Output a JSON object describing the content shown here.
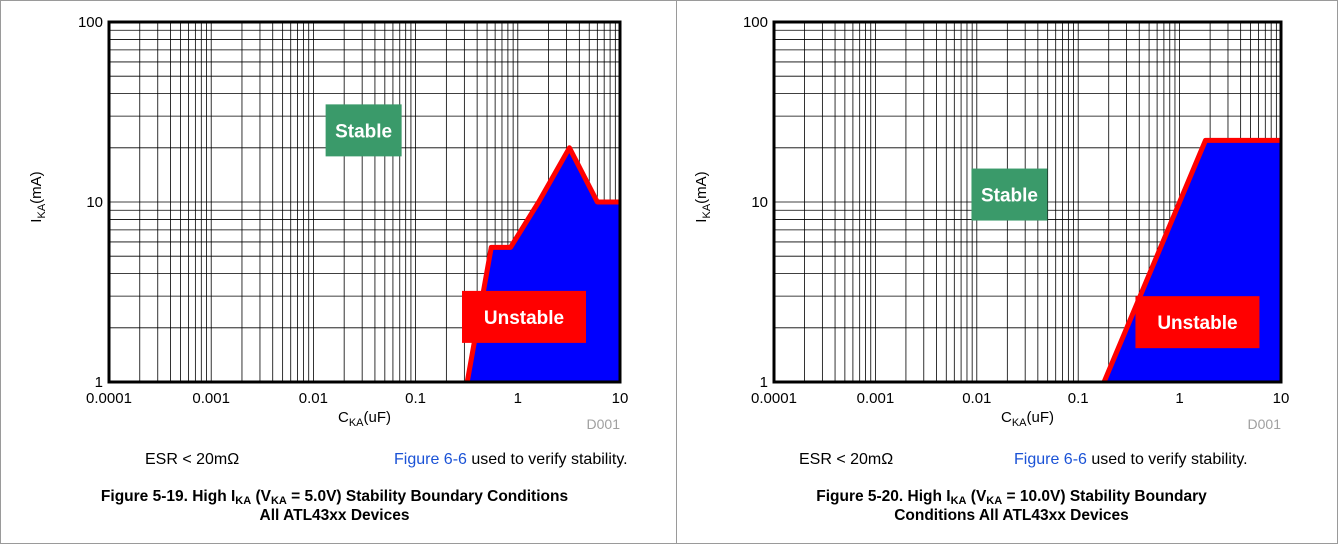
{
  "colors": {
    "fill": "#0000ff",
    "boundary": "#ff0000",
    "stable_box": "#3a9a6a",
    "link": "#1a52d6",
    "code": "#a0a0a0"
  },
  "charts": [
    {
      "note_left": "ESR < 20mΩ",
      "note_link": "Figure 6-6",
      "note_right": " used to verify stability.",
      "caption": {
        "fig": "Figure 5-19. High I",
        "sub1": "KA",
        "mid": " (V",
        "sub2": "KA",
        "rest": " = 5.0V) Stability Boundary Conditions",
        "line2": "All ATL43xx Devices"
      }
    },
    {
      "note_left": "ESR < 20mΩ",
      "note_link": "Figure 6-6",
      "note_right": " used to verify stability.",
      "caption": {
        "fig": "Figure 5-20. High I",
        "sub1": "KA",
        "mid": " (V",
        "sub2": "KA",
        "rest": " = 10.0V) Stability Boundary",
        "line2": "Conditions All ATL43xx Devices"
      }
    }
  ],
  "chart_data": [
    {
      "type": "area",
      "xscale": "log",
      "yscale": "log",
      "xlim": [
        0.0001,
        10
      ],
      "ylim": [
        1,
        100
      ],
      "grid": true,
      "x_tick_labels": [
        "0.0001",
        "0.001",
        "0.01",
        "0.1",
        "1",
        "10"
      ],
      "y_tick_labels": [
        "1",
        "10",
        "100"
      ],
      "xlabel": {
        "main": "C",
        "sub": "KA",
        "unit": "(uF)"
      },
      "ylabel": {
        "main": "I",
        "sub": "KA",
        "unit": "(mA)"
      },
      "code": "D001",
      "series": [
        {
          "x": [
            0.32,
            0.55,
            0.85,
            1.6,
            3.2,
            6.0,
            10
          ],
          "y": [
            1,
            5.6,
            5.6,
            10,
            20,
            10,
            10
          ]
        }
      ],
      "annotations": [
        {
          "text": "Stable",
          "x": 0.031,
          "y": 25
        },
        {
          "text": "Unstable",
          "x": 1.15,
          "y": 2.3
        }
      ]
    },
    {
      "type": "area",
      "xscale": "log",
      "yscale": "log",
      "xlim": [
        0.0001,
        10
      ],
      "ylim": [
        1,
        100
      ],
      "grid": true,
      "x_tick_labels": [
        "0.0001",
        "0.001",
        "0.01",
        "0.1",
        "1",
        "10"
      ],
      "y_tick_labels": [
        "1",
        "10",
        "100"
      ],
      "xlabel": {
        "main": "C",
        "sub": "KA",
        "unit": "(uF)"
      },
      "ylabel": {
        "main": "I",
        "sub": "KA",
        "unit": "(mA)"
      },
      "code": "D001",
      "series": [
        {
          "x": [
            0.18,
            1.8,
            10
          ],
          "y": [
            1,
            22,
            22
          ]
        }
      ],
      "annotations": [
        {
          "text": "Stable",
          "x": 0.021,
          "y": 11
        },
        {
          "text": "Unstable",
          "x": 1.5,
          "y": 2.15
        }
      ]
    }
  ]
}
